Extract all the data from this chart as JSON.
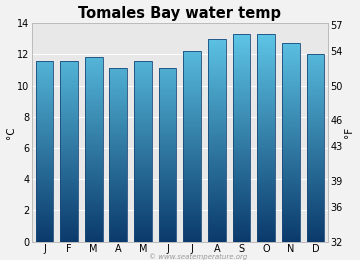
{
  "title": "Tomales Bay water temp",
  "months": [
    "J",
    "F",
    "M",
    "A",
    "M",
    "J",
    "J",
    "A",
    "S",
    "O",
    "N",
    "D"
  ],
  "values_c": [
    11.6,
    11.6,
    11.8,
    11.1,
    11.6,
    11.1,
    12.2,
    13.0,
    13.3,
    13.3,
    12.7,
    12.0
  ],
  "ylim_c": [
    0,
    14
  ],
  "yticks_c": [
    0,
    2,
    4,
    6,
    8,
    10,
    12,
    14
  ],
  "yticks_f": [
    32,
    36,
    39,
    43,
    46,
    50,
    54,
    57
  ],
  "ylabel_left": "°C",
  "ylabel_right": "°F",
  "bar_color_top": "#62ccec",
  "bar_color_bottom": "#0a3a6b",
  "background_color": "#f2f2f2",
  "plot_bg_color": "#e8e8e8",
  "title_fontsize": 10.5,
  "axis_fontsize": 7.5,
  "tick_fontsize": 7,
  "watermark": "© www.seatemperature.org",
  "bar_edge_color": "#1a4a7a",
  "bar_width": 0.72
}
